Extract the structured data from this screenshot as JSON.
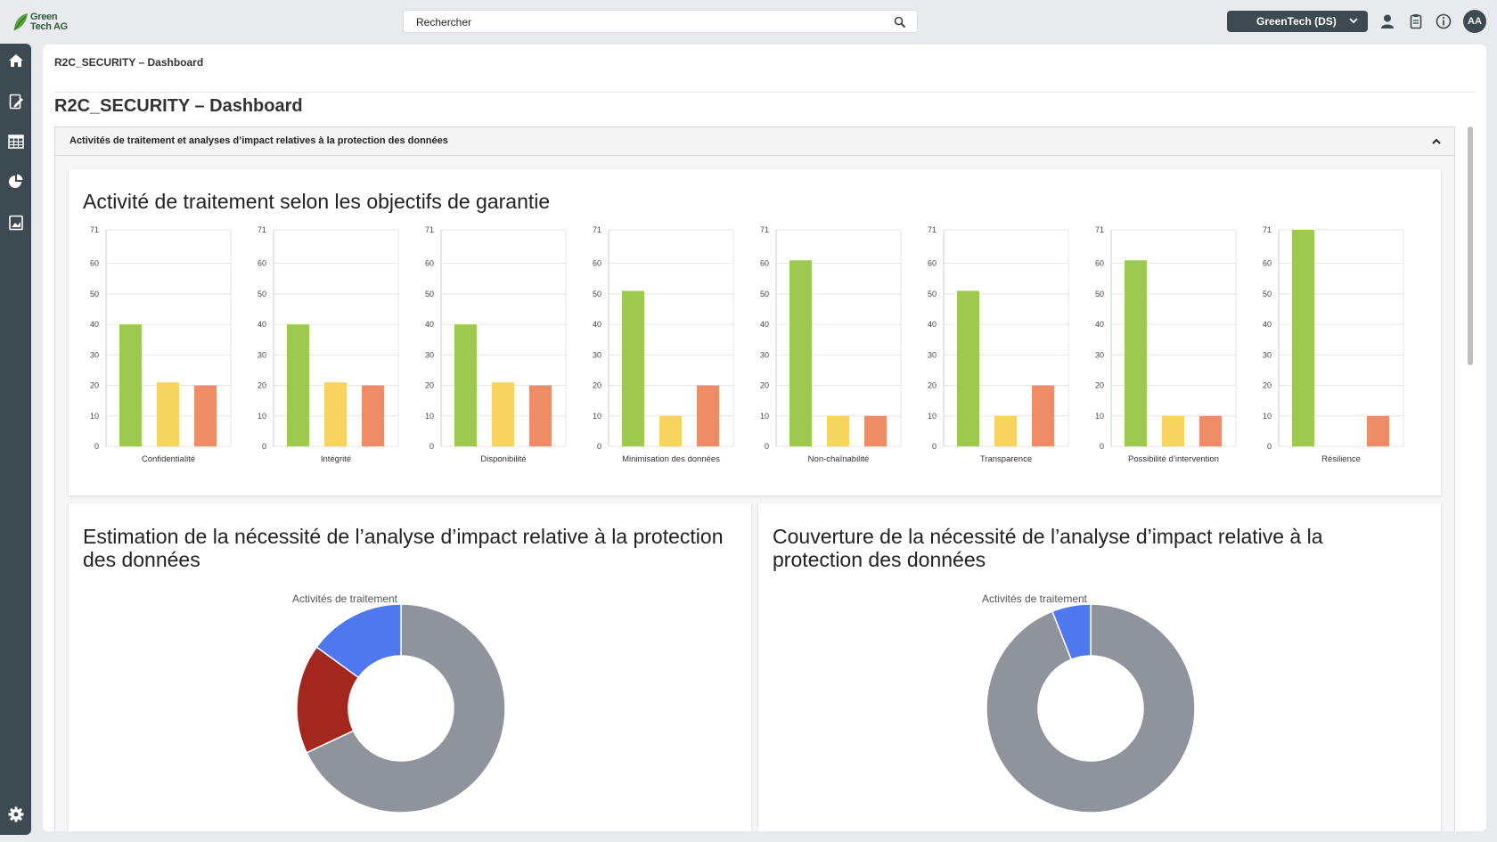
{
  "app": {
    "logo_line1": "Green",
    "logo_line2": "Tech AG",
    "search_value": "Rechercher",
    "tenant": "GreenTech (DS)",
    "avatar": "AA"
  },
  "icons": {
    "top": [
      "user-icon",
      "clipboard-icon",
      "info-icon"
    ],
    "nav": [
      "home-icon",
      "edit-document-icon",
      "table-icon",
      "pie-chart-icon",
      "report-icon",
      "settings-icon"
    ]
  },
  "colors": {
    "green": "#9dc94f",
    "yellow": "#f7d35f",
    "orange": "#ee8c68",
    "gray": "#8f939c",
    "red": "#a3271f",
    "blue": "#4f77ee",
    "sidebar": "#3d4a52"
  },
  "breadcrumb": "R2C_SECURITY – Dashboard",
  "page_title": "R2C_SECURITY – Dashboard",
  "section": {
    "title": "Activités de traitement et analyses d’impact relatives à la protection des données"
  },
  "cards": {
    "bars_title": "Activité de traitement selon les objectifs de garantie",
    "donut1_title": "Estimation de la nécessité de l’analyse d’impact relative à la protection des données",
    "donut2_title": "Couverture de la nécessité de l’analyse d’impact relative à la protection des données"
  },
  "chart_data": [
    {
      "type": "bar",
      "title": "Activité de traitement selon les objectifs de garantie",
      "ylim": [
        0,
        71
      ],
      "yticks": [
        0,
        10,
        20,
        30,
        40,
        50,
        60,
        71
      ],
      "grid": true,
      "categories": [
        "Confidentialité",
        "Intégrité",
        "Disponibilité",
        "Minimisation des données",
        "Non-chaînabilité",
        "Transparence",
        "Possibilité d’intervention",
        "Résilience"
      ],
      "series": [
        {
          "color": "#9dc94f",
          "values": [
            40,
            40,
            40,
            51,
            61,
            51,
            61,
            71
          ]
        },
        {
          "color": "#f7d35f",
          "values": [
            21,
            21,
            21,
            10,
            10,
            10,
            10,
            0
          ]
        },
        {
          "color": "#ee8c68",
          "values": [
            20,
            20,
            20,
            20,
            10,
            20,
            10,
            10
          ]
        }
      ]
    },
    {
      "type": "pie",
      "donut": true,
      "title": "Estimation de la nécessité de l’analyse d’impact relative à la protection des données",
      "subtitle": "Activités de traitement",
      "slices": [
        {
          "color": "#8f939c",
          "value": 68
        },
        {
          "color": "#a3271f",
          "value": 17
        },
        {
          "color": "#4f77ee",
          "value": 15
        }
      ]
    },
    {
      "type": "pie",
      "donut": true,
      "title": "Couverture de la nécessité de l’analyse d’impact relative à la protection des données",
      "subtitle": "Activités de traitement",
      "slices": [
        {
          "color": "#8f939c",
          "value": 94
        },
        {
          "color": "#4f77ee",
          "value": 6
        }
      ]
    }
  ]
}
